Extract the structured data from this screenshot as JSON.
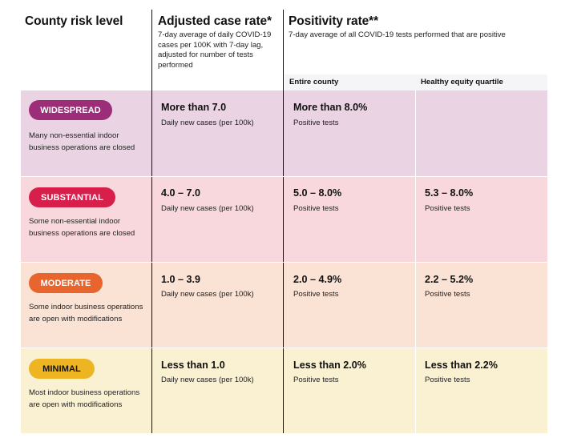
{
  "header": {
    "risk_title": "County risk level",
    "case_title": "Adjusted case rate*",
    "case_sub": "7-day average of daily COVID-19 cases per 100K with 7-day lag, adjusted for number of tests performed",
    "positivity_title": "Positivity rate**",
    "positivity_sub": "7-day average of all COVID-19 tests performed that are positive",
    "col_entire": "Entire county",
    "col_equity": "Healthy equity quartile"
  },
  "rows": [
    {
      "badge": "WIDESPREAD",
      "color": "#9c2d78",
      "background": "#ead3e3",
      "description": "Many non-essential indoor business operations are closed",
      "case_value": "More than 7.0",
      "case_sub": "Daily new cases (per 100k)",
      "county_value": "More than 8.0%",
      "county_sub": "Positive tests",
      "equity_value": "",
      "equity_sub": ""
    },
    {
      "badge": "SUBSTANTIAL",
      "color": "#d81e4b",
      "background": "#f8d8dc",
      "description": "Some non-essential indoor business operations are closed",
      "case_value": "4.0 – 7.0",
      "case_sub": "Daily new cases (per 100k)",
      "county_value": "5.0 – 8.0%",
      "county_sub": "Positive tests",
      "equity_value": "5.3 – 8.0%",
      "equity_sub": "Positive tests"
    },
    {
      "badge": "MODERATE",
      "color": "#e8652d",
      "background": "#fae2d5",
      "description": "Some indoor business operations are open with modifications",
      "case_value": "1.0 – 3.9",
      "case_sub": "Daily new cases (per 100k)",
      "county_value": "2.0 – 4.9%",
      "county_sub": "Positive tests",
      "equity_value": "2.2 – 5.2%",
      "equity_sub": "Positive tests"
    },
    {
      "badge": "MINIMAL",
      "color": "#ecb521",
      "background": "#faf0d2",
      "description": "Most indoor business operations are open with modifications",
      "case_value": "Less than 1.0",
      "case_sub": "Daily new cases (per 100k)",
      "county_value": "Less than 2.0%",
      "county_sub": "Positive tests",
      "equity_value": "Less than 2.2%",
      "equity_sub": "Positive tests"
    }
  ]
}
